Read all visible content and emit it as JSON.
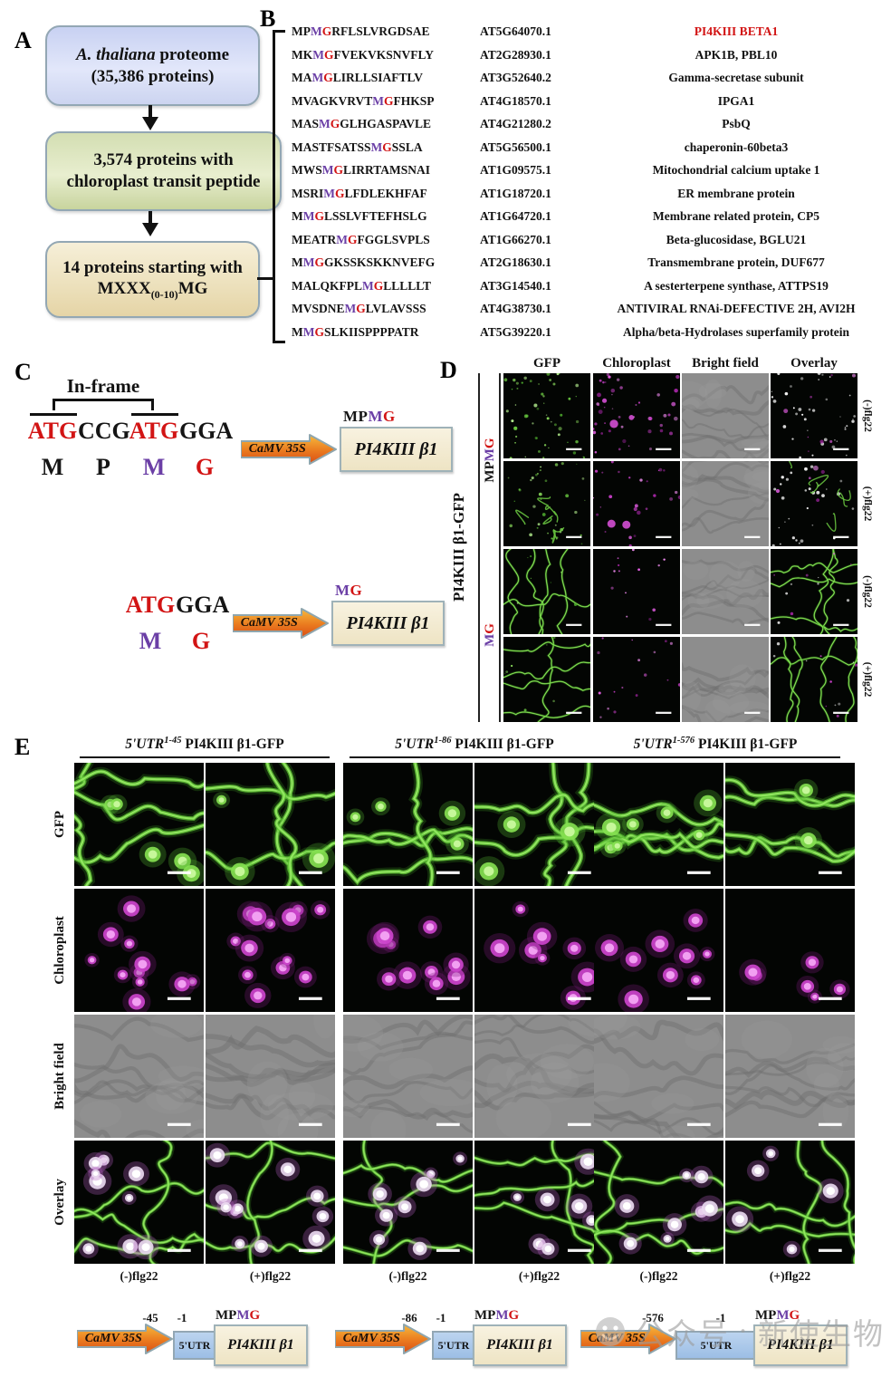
{
  "palette": {
    "purple": "#6b3fa6",
    "red": "#d21414",
    "green_dot": "#6ccb42",
    "magenta_dot": "#d44fd4"
  },
  "panelA": {
    "label": "A",
    "box1": {
      "italic": "A. thaliana",
      "rest": " proteome",
      "line2": "(35,386 proteins)"
    },
    "box2": "3,574 proteins with chloroplast transit peptide",
    "box3": {
      "line1": "14 proteins starting with",
      "main": "MXXX",
      "sub": "(0-10)",
      "tail": "MG"
    }
  },
  "panelB": {
    "label": "B",
    "rows": [
      {
        "pre": "MP",
        "m": "M",
        "g": "G",
        "post": "RFLSLVRGDSAE",
        "acc": "AT5G64070.1",
        "name": "PI4KIII BETA1",
        "red": true
      },
      {
        "pre": "MK",
        "m": "M",
        "g": "G",
        "post": "FVEKVKSNVFLY",
        "acc": "AT2G28930.1",
        "name": "APK1B, PBL10",
        "red": false
      },
      {
        "pre": "MA",
        "m": "M",
        "g": "G",
        "post": "LIRLLSIAFTLV",
        "acc": "AT3G52640.2",
        "name": "Gamma-secretase subunit",
        "red": false
      },
      {
        "pre": "MVAGKVRVT",
        "m": "M",
        "g": "G",
        "post": "FHKSP",
        "acc": "AT4G18570.1",
        "name": "IPGA1",
        "red": false
      },
      {
        "pre": "MAS",
        "m": "M",
        "g": "G",
        "post": "GLHGASPAVLE",
        "acc": "AT4G21280.2",
        "name": "PsbQ",
        "red": false
      },
      {
        "pre": "MASTFSATSS",
        "m": "M",
        "g": "G",
        "post": "SSLA",
        "acc": "AT5G56500.1",
        "name": "chaperonin-60beta3",
        "red": false
      },
      {
        "pre": "MWS",
        "m": "M",
        "g": "G",
        "post": "LIRRTAMSNAI",
        "acc": "AT1G09575.1",
        "name": "Mitochondrial calcium uptake 1",
        "red": false
      },
      {
        "pre": "MSRI",
        "m": "M",
        "g": "G",
        "post": "LFDLEKHFAF",
        "acc": "AT1G18720.1",
        "name": "ER membrane protein",
        "red": false
      },
      {
        "pre": "M",
        "m": "M",
        "g": "G",
        "post": "LSSLVFTEFHSLG",
        "acc": "AT1G64720.1",
        "name": "Membrane related protein, CP5",
        "red": false
      },
      {
        "pre": "MEATR",
        "m": "M",
        "g": "G",
        "post": "FGGLSVPLS",
        "acc": "AT1G66270.1",
        "name": "Beta-glucosidase, BGLU21",
        "red": false
      },
      {
        "pre": "M",
        "m": "M",
        "g": "G",
        "post": "GKSSKSKKNVEFG",
        "acc": "AT2G18630.1",
        "name": "Transmembrane protein, DUF677",
        "red": false
      },
      {
        "pre": "MALQKFPL",
        "m": "M",
        "g": "G",
        "post": "LLLLLT",
        "acc": "AT3G14540.1",
        "name": "A sesterterpene synthase, ATTPS19",
        "red": false
      },
      {
        "pre": "MVSDNE",
        "m": "M",
        "g": "G",
        "post": "LVLAVSSS",
        "acc": "AT4G38730.1",
        "name": "ANTIVIRAL RNAi-DEFECTIVE 2H, AVI2H",
        "red": false
      },
      {
        "pre": "M",
        "m": "M",
        "g": "G",
        "post": "SLKIISPPPPATR",
        "acc": "AT5G39220.1",
        "name": "Alpha/beta-Hydrolases superfamily protein",
        "red": false
      }
    ]
  },
  "panelC": {
    "label": "C",
    "inframe": "In-frame",
    "c1": {
      "codons": [
        [
          "ATG",
          "cr"
        ],
        [
          "CCG",
          "ck"
        ],
        [
          "ATG",
          "cr"
        ],
        [
          "GGA",
          "ck"
        ]
      ],
      "residues": [
        [
          "M",
          "ck"
        ],
        [
          "P",
          "ck"
        ],
        [
          "M",
          "cm"
        ],
        [
          "G",
          "cr"
        ]
      ],
      "promoter": "CaMV 35S",
      "gene": "PI4KIII β1",
      "tag": [
        [
          "MP",
          "ck"
        ],
        [
          "M",
          "cm"
        ],
        [
          "G",
          "cr"
        ]
      ]
    },
    "c2": {
      "codons": [
        [
          "ATG",
          "cr"
        ],
        [
          "GGA",
          "ck"
        ]
      ],
      "residues": [
        [
          "M",
          "cm"
        ],
        [
          "G",
          "cr"
        ]
      ],
      "promoter": "CaMV 35S",
      "gene": "PI4KIII β1",
      "tag": [
        [
          "M",
          "cm"
        ],
        [
          "G",
          "cr"
        ]
      ]
    }
  },
  "panelD": {
    "label": "D",
    "side": "PI4KIII β1-GFP",
    "cols": [
      "GFP",
      "Chloroplast",
      "Bright field",
      "Overlay"
    ],
    "groups": [
      [
        [
          "MP",
          "ck"
        ],
        [
          "M",
          "cm"
        ],
        [
          "G",
          "cr"
        ]
      ],
      [
        [
          "M",
          "cm"
        ],
        [
          "G",
          "cr"
        ]
      ]
    ],
    "right": [
      "(-)flg22",
      "(+)flg22",
      "(-)flg22",
      "(+)flg22"
    ],
    "grid": [
      [
        {
          "t": "gdots",
          "s": 11,
          "n": 52
        },
        {
          "t": "mdots",
          "s": 12,
          "n": 44
        },
        {
          "t": "bf",
          "s": 13
        },
        {
          "t": "odots",
          "s": 14,
          "n": 38
        }
      ],
      [
        {
          "t": "gdots2",
          "s": 21,
          "n": 34
        },
        {
          "t": "mdots2",
          "s": 22,
          "n": 26
        },
        {
          "t": "bf",
          "s": 23
        },
        {
          "t": "odots2",
          "s": 24,
          "n": 30
        }
      ],
      [
        {
          "t": "gcells",
          "s": 31
        },
        {
          "t": "msparse",
          "s": 32,
          "n": 13
        },
        {
          "t": "bf",
          "s": 33
        },
        {
          "t": "ocells",
          "s": 34
        }
      ],
      [
        {
          "t": "gcells",
          "s": 41
        },
        {
          "t": "msparse",
          "s": 42,
          "n": 17
        },
        {
          "t": "bf",
          "s": 43
        },
        {
          "t": "ocells",
          "s": 44
        }
      ]
    ]
  },
  "panelE": {
    "label": "E",
    "headers": [
      {
        "utr": "5'UTR",
        "sup": "1-45",
        "rest": " PI4KIII β1-GFP"
      },
      {
        "utr": "5'UTR",
        "sup": "1-86",
        "rest": " PI4KIII β1-GFP"
      },
      {
        "utr": "5'UTR",
        "sup": "1-576",
        "rest": " PI4KIII β1-GFP"
      }
    ],
    "rows": [
      "GFP",
      "Chloroplast",
      "Bright field",
      "Overlay"
    ],
    "bottom": [
      "(-)flg22",
      "(+)flg22",
      "(-)flg22",
      "(+)flg22",
      "(-)flg22",
      "(+)flg22"
    ],
    "grid": [
      [
        {
          "t": "egfp",
          "s": 101,
          "n": 5
        },
        {
          "t": "egfp",
          "s": 102,
          "n": 3
        },
        {
          "t": "egfp",
          "s": 103,
          "n": 4
        },
        {
          "t": "egfp",
          "s": 104,
          "n": 3
        },
        {
          "t": "egfp",
          "s": 105,
          "n": 7
        },
        {
          "t": "egfp",
          "s": 106,
          "n": 2
        }
      ],
      [
        {
          "t": "echl",
          "s": 111,
          "n": 11
        },
        {
          "t": "echl",
          "s": 112,
          "n": 13
        },
        {
          "t": "echl",
          "s": 113,
          "n": 10
        },
        {
          "t": "echl",
          "s": 114,
          "n": 8
        },
        {
          "t": "echl",
          "s": 115,
          "n": 9
        },
        {
          "t": "echl",
          "s": 116,
          "n": 6
        }
      ],
      [
        {
          "t": "bf",
          "s": 121
        },
        {
          "t": "bf",
          "s": 122
        },
        {
          "t": "bf",
          "s": 123
        },
        {
          "t": "bf",
          "s": 124
        },
        {
          "t": "bf",
          "s": 125
        },
        {
          "t": "bf",
          "s": 126
        }
      ],
      [
        {
          "t": "eovl",
          "s": 131,
          "n": 9
        },
        {
          "t": "eovl",
          "s": 132,
          "n": 11
        },
        {
          "t": "eovl",
          "s": 133,
          "n": 8
        },
        {
          "t": "eovl",
          "s": 134,
          "n": 7
        },
        {
          "t": "eovl",
          "s": 135,
          "n": 8
        },
        {
          "t": "eovl",
          "s": 136,
          "n": 5
        }
      ]
    ],
    "constructs": [
      {
        "promoter": "CaMV 35S",
        "utr": "5'UTR",
        "from": "-45",
        "to": "-1",
        "gene": "PI4KIII β1",
        "tag": [
          [
            "MP",
            "ck"
          ],
          [
            "M",
            "cm"
          ],
          [
            "G",
            "cr"
          ]
        ]
      },
      {
        "promoter": "CaMV 35S",
        "utr": "5'UTR",
        "from": "-86",
        "to": "-1",
        "gene": "PI4KIII β1",
        "tag": [
          [
            "MP",
            "ck"
          ],
          [
            "M",
            "cm"
          ],
          [
            "G",
            "cr"
          ]
        ]
      },
      {
        "promoter": "CaMV 35S",
        "utr": "5'UTR",
        "from": "-576",
        "to": "-1",
        "gene": "PI4KIII β1",
        "tag": [
          [
            "MP",
            "ck"
          ],
          [
            "M",
            "cm"
          ],
          [
            "G",
            "cr"
          ]
        ]
      }
    ]
  },
  "watermark": {
    "prefix": "公众号",
    "sep": "·",
    "name": "新使生物"
  }
}
